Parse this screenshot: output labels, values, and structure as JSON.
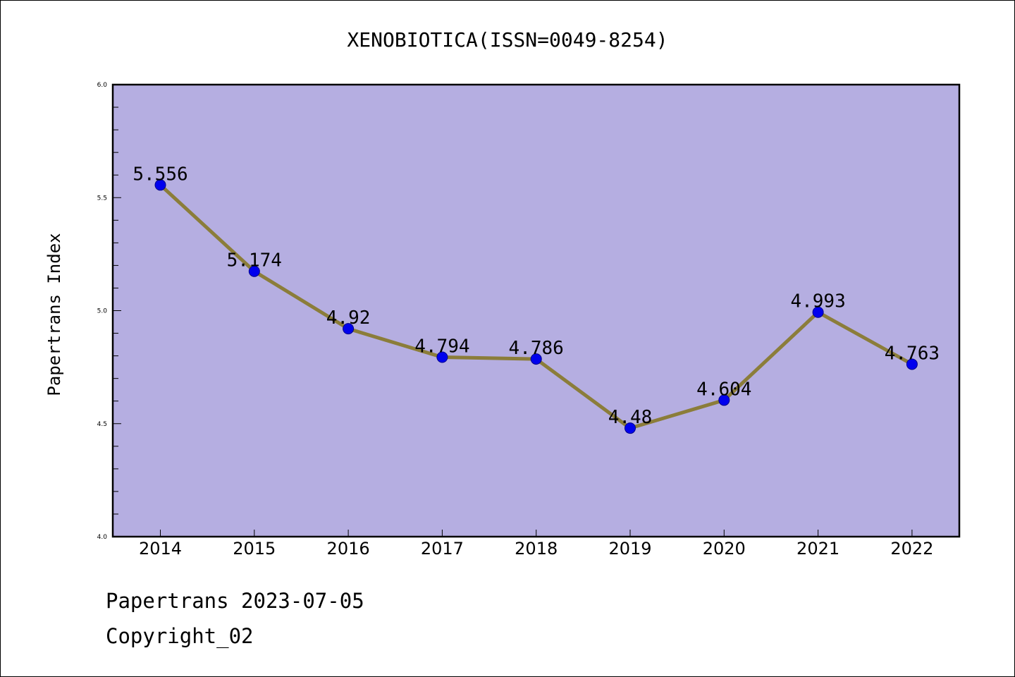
{
  "chart_data": {
    "type": "line",
    "title": "XENOBIOTICA(ISSN=0049-8254)",
    "xlabel": "",
    "ylabel": "Papertrans Index",
    "categories": [
      "2014",
      "2015",
      "2016",
      "2017",
      "2018",
      "2019",
      "2020",
      "2021",
      "2022"
    ],
    "series": [
      {
        "values": [
          5.556,
          5.174,
          4.92,
          4.794,
          4.786,
          4.48,
          4.604,
          4.993,
          4.763
        ],
        "labels": [
          "5.556",
          "5.174",
          "4.92",
          "4.794",
          "4.786",
          "4.48",
          "4.604",
          "4.993",
          "4.763"
        ]
      }
    ],
    "ylim": [
      4.0,
      6.0
    ],
    "yticks": [
      "4.0",
      "4.5",
      "5.0",
      "5.5",
      "6.0"
    ],
    "grid": false,
    "colors": {
      "plot_background": "#b5aee1",
      "line": "#8b7d3a",
      "marker": "#0000ee",
      "marker_edge": "#00008b"
    }
  },
  "footer": {
    "line1": "Papertrans 2023-07-05",
    "line2": "Copyright_02"
  }
}
